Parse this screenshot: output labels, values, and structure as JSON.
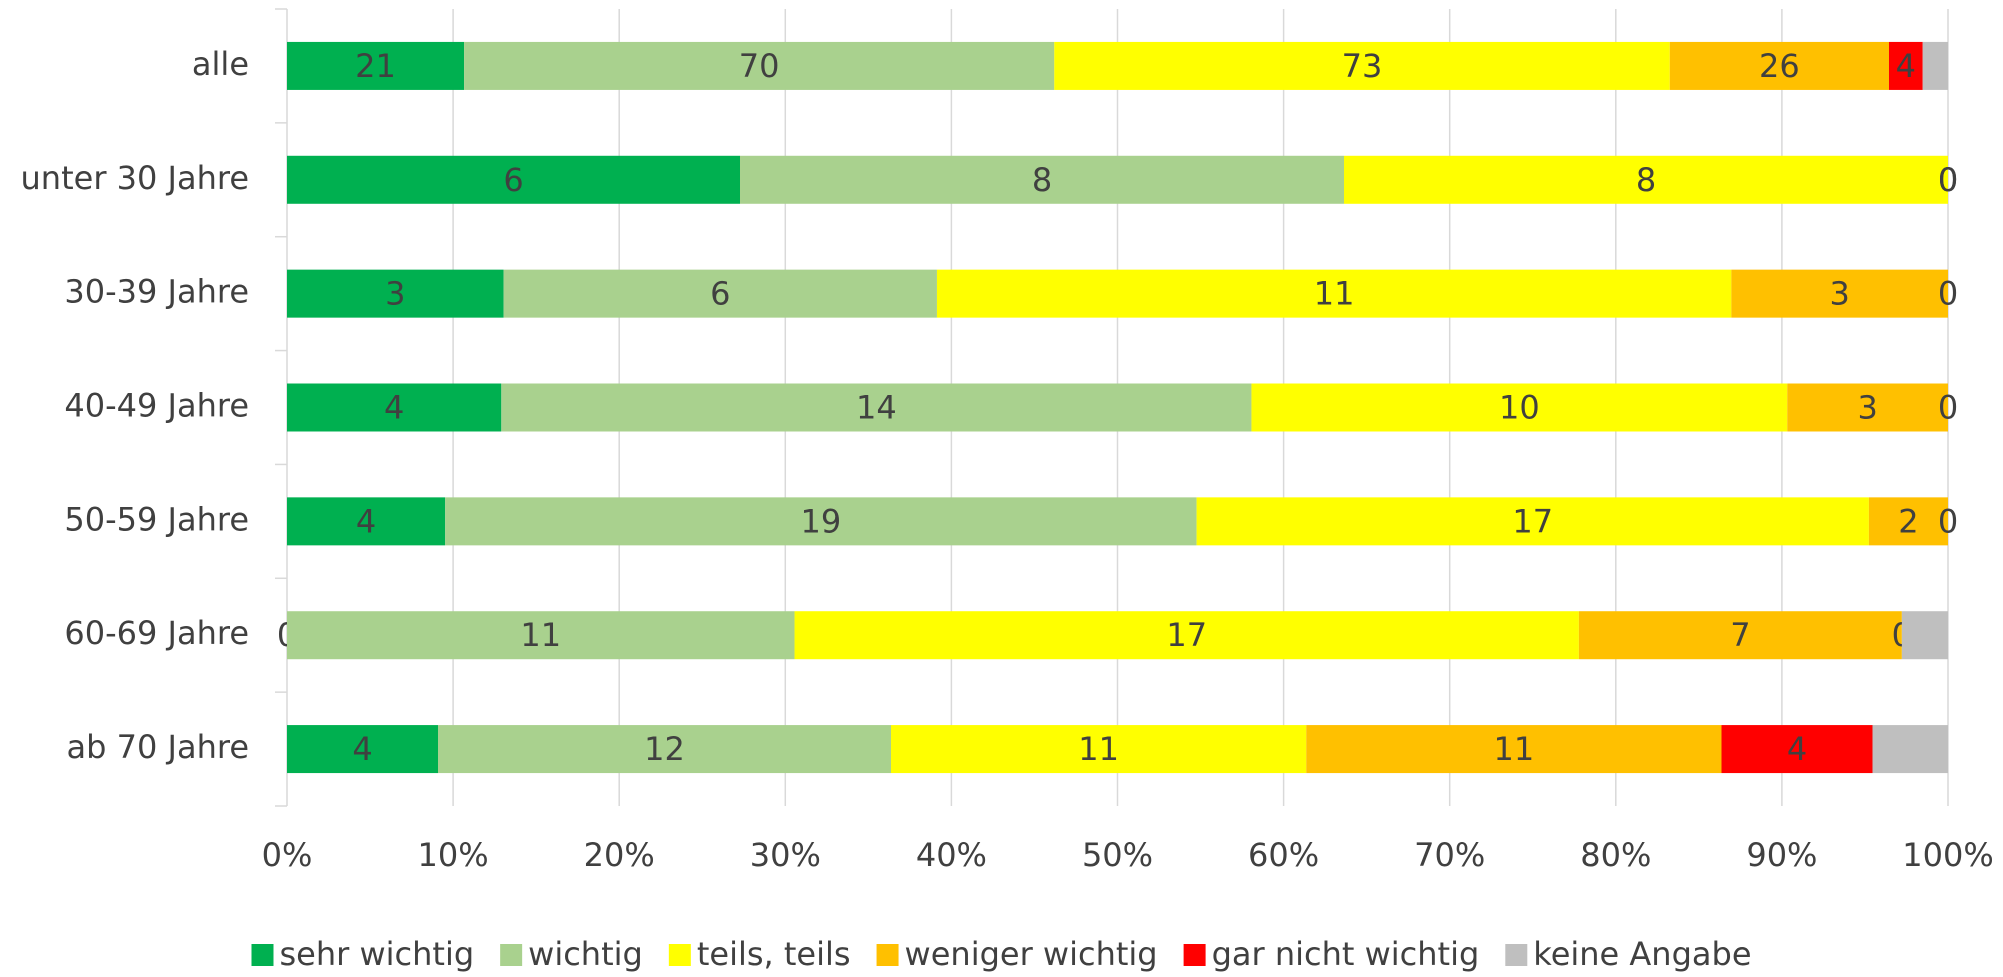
{
  "chart_data": {
    "type": "stacked_bar_100_horizontal",
    "categories": [
      "alle",
      "unter 30 Jahre",
      "30-39 Jahre",
      "40-49 Jahre",
      "50-59 Jahre",
      "60-69 Jahre",
      "ab 70 Jahre"
    ],
    "series": [
      {
        "name": "sehr wichtig",
        "color": "#00b050",
        "labels": true,
        "values": [
          21,
          6,
          3,
          4,
          4,
          0,
          4
        ]
      },
      {
        "name": "wichtig",
        "color": "#a9d18e",
        "labels": true,
        "values": [
          70,
          8,
          6,
          14,
          19,
          11,
          12
        ]
      },
      {
        "name": "teils, teils",
        "color": "#ffff00",
        "labels": true,
        "values": [
          73,
          8,
          11,
          10,
          17,
          17,
          11
        ]
      },
      {
        "name": "weniger wichtig",
        "color": "#ffc000",
        "labels": true,
        "values": [
          26,
          0,
          3,
          3,
          2,
          7,
          11
        ]
      },
      {
        "name": "gar nicht wichtig",
        "color": "#ff0000",
        "labels": true,
        "values": [
          4,
          0,
          0,
          0,
          0,
          0,
          4
        ]
      },
      {
        "name": "keine Angabe",
        "color": "#bfbfbf",
        "labels": false,
        "values": [
          3,
          0,
          0,
          0,
          0,
          1,
          2
        ]
      }
    ],
    "xlim": [
      0,
      100
    ],
    "xticks": [
      {
        "value": 0,
        "label": "0%"
      },
      {
        "value": 10,
        "label": "10%"
      },
      {
        "value": 20,
        "label": "20%"
      },
      {
        "value": 30,
        "label": "30%"
      },
      {
        "value": 40,
        "label": "40%"
      },
      {
        "value": 50,
        "label": "50%"
      },
      {
        "value": 60,
        "label": "60%"
      },
      {
        "value": 70,
        "label": "70%"
      },
      {
        "value": 80,
        "label": "80%"
      },
      {
        "value": 90,
        "label": "90%"
      },
      {
        "value": 100,
        "label": "100%"
      }
    ],
    "grid": true,
    "legend": "bottom"
  }
}
